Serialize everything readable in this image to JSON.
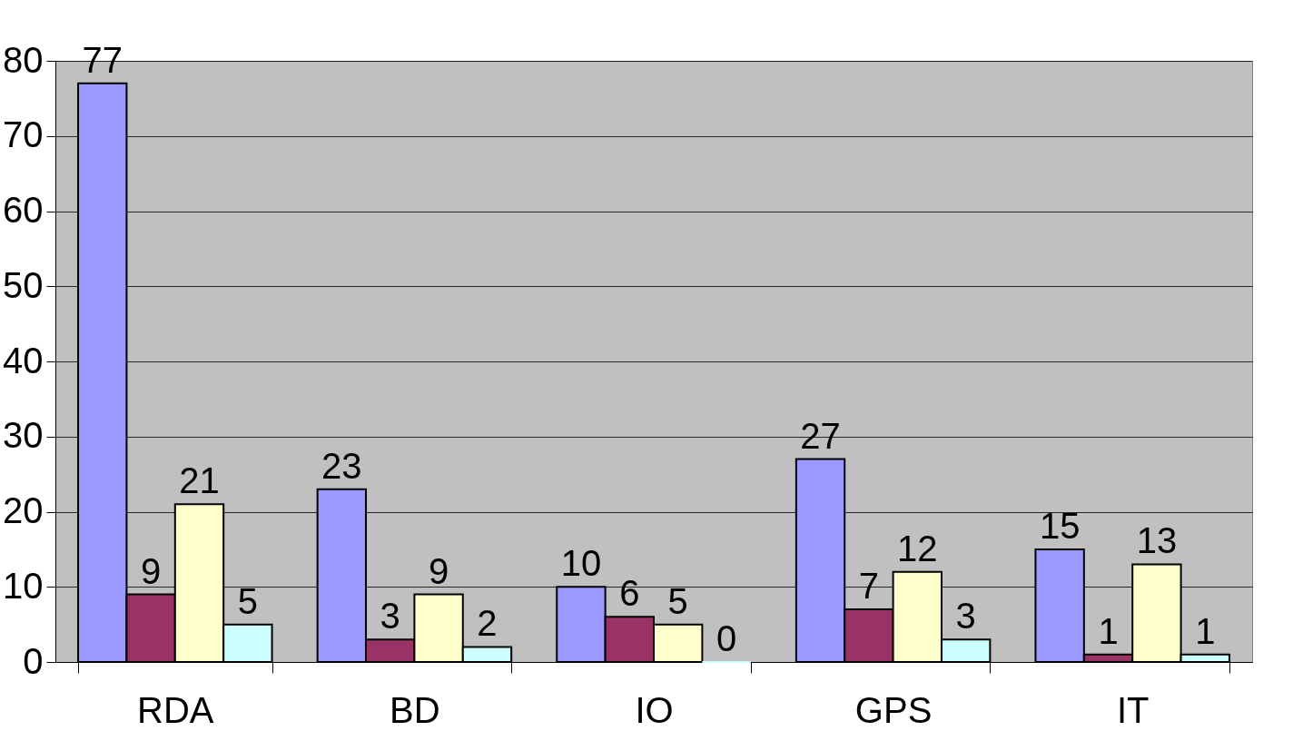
{
  "chart_data": {
    "type": "bar",
    "categories": [
      "RDA",
      "BD",
      "IO",
      "GPS",
      "IT"
    ],
    "series": [
      {
        "color": "#9999ff",
        "values": [
          77,
          23,
          10,
          27,
          15
        ]
      },
      {
        "color": "#993366",
        "values": [
          9,
          3,
          6,
          7,
          1
        ]
      },
      {
        "color": "#ffffcc",
        "values": [
          21,
          9,
          5,
          12,
          13
        ]
      },
      {
        "color": "#ccffff",
        "values": [
          5,
          2,
          0,
          3,
          1
        ]
      }
    ],
    "ylim": [
      0,
      80
    ],
    "yticks": [
      0,
      10,
      20,
      30,
      40,
      50,
      60,
      70,
      80
    ],
    "grid": "y",
    "data_labels": true,
    "legend": false
  }
}
